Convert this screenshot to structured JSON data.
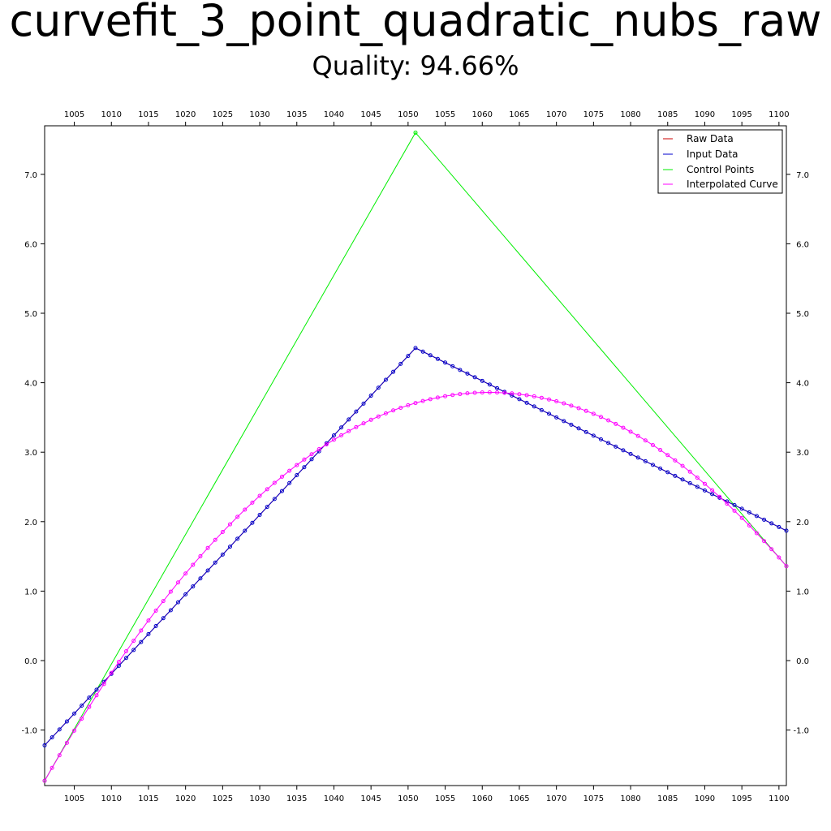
{
  "title": "curvefit_3_point_quadratic_nubs_raw",
  "subtitle": "Quality: 94.66%",
  "colors": {
    "raw": "#cc0000",
    "input": "#0000cc",
    "control": "#00ee00",
    "curve": "#ff00ff",
    "axis": "#000000",
    "background": "#ffffff"
  },
  "chart_data": {
    "type": "line",
    "title": "curvefit_3_point_quadratic_nubs_raw",
    "subtitle": "Quality: 94.66%",
    "xlabel": "",
    "ylabel": "",
    "xlim": [
      1001,
      1101
    ],
    "ylim": [
      -1.8,
      7.7
    ],
    "x_ticks": [
      1005,
      1010,
      1015,
      1020,
      1025,
      1030,
      1035,
      1040,
      1045,
      1050,
      1055,
      1060,
      1065,
      1070,
      1075,
      1080,
      1085,
      1090,
      1095,
      1100
    ],
    "y_ticks": [
      -1.0,
      0.0,
      1.0,
      2.0,
      3.0,
      4.0,
      5.0,
      6.0,
      7.0
    ],
    "y_tick_labels": [
      "-1.0",
      "0.0",
      "1.0",
      "2.0",
      "3.0",
      "4.0",
      "5.0",
      "6.0",
      "7.0"
    ],
    "grid": false,
    "legend_position": "top-right",
    "legend": [
      "Raw Data",
      "Input Data",
      "Control Points",
      "Interpolated Curve"
    ],
    "series": [
      {
        "name": "Raw Data",
        "color": "#cc0000",
        "x": [
          1001,
          1051,
          1101
        ],
        "y": [
          -1.22,
          4.5,
          1.87
        ]
      },
      {
        "name": "Input Data",
        "color": "#0000cc",
        "x": [
          1001,
          1051,
          1101
        ],
        "y": [
          -1.22,
          4.5,
          1.87
        ]
      },
      {
        "name": "Control Points",
        "color": "#00ee00",
        "x": [
          1001,
          1051,
          1101
        ],
        "y": [
          -1.73,
          7.6,
          1.36
        ]
      },
      {
        "name": "Interpolated Curve",
        "color": "#ff00ff",
        "x": [
          1001,
          1051,
          1101
        ],
        "y": [
          -1.73,
          3.71,
          1.36
        ]
      }
    ]
  }
}
